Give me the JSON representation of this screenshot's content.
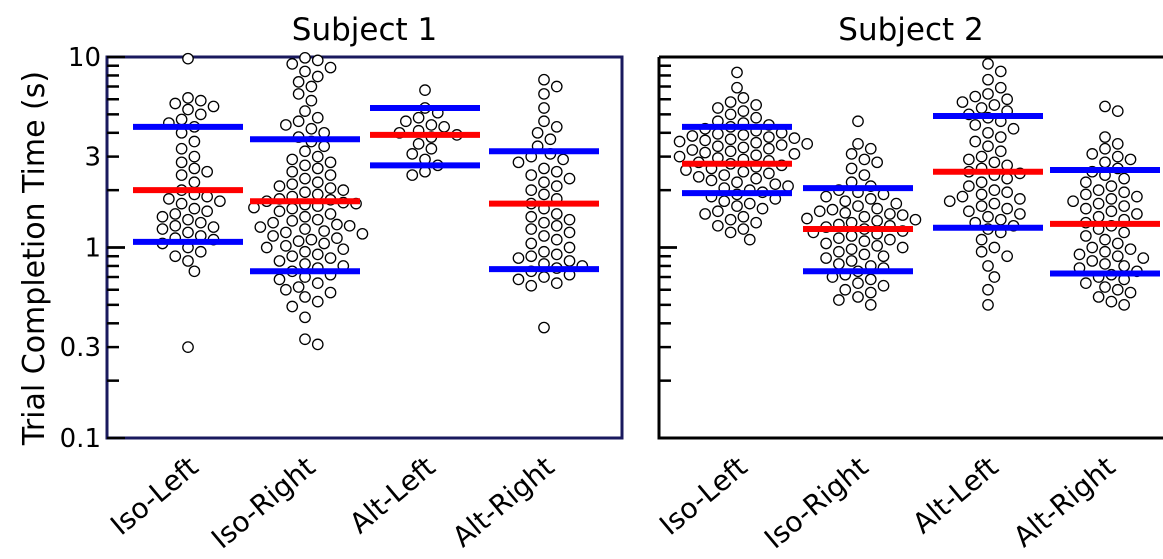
{
  "chart_data": {
    "type": "scatter",
    "ylabel": "Trial Completion Time (s)",
    "yscale": "log",
    "ylim": [
      0.1,
      10
    ],
    "yticks": [
      {
        "value": 10,
        "label": "10"
      },
      {
        "value": 3,
        "label": "3"
      },
      {
        "value": 1,
        "label": "1"
      },
      {
        "value": 0.3,
        "label": "0.3"
      },
      {
        "value": 0.1,
        "label": "0.1"
      }
    ],
    "categories": [
      "Iso-Left",
      "Iso-Right",
      "Alt-Left",
      "Alt-Right"
    ],
    "colors": {
      "median": "#ff0000",
      "quartile": "#0000ff",
      "point_edge": "#000000",
      "point_fill": "#ffffff",
      "frame_subject1": "#1a1a5e"
    },
    "panels": [
      {
        "title": "Subject 1",
        "groups": [
          {
            "category": "Iso-Left",
            "median": 2.0,
            "q1": 1.07,
            "q3": 4.3,
            "points": [
              9.8,
              6.1,
              5.9,
              5.7,
              5.5,
              5.3,
              5.0,
              4.7,
              4.5,
              4.3,
              4.0,
              3.6,
              3.3,
              3.0,
              2.8,
              2.6,
              2.5,
              2.4,
              2.2,
              2.0,
              1.9,
              1.85,
              1.8,
              1.75,
              1.7,
              1.6,
              1.55,
              1.5,
              1.45,
              1.4,
              1.35,
              1.3,
              1.28,
              1.25,
              1.2,
              1.15,
              1.12,
              1.1,
              1.05,
              1.0,
              0.95,
              0.9,
              0.85,
              0.75,
              0.3
            ]
          },
          {
            "category": "Iso-Right",
            "median": 1.75,
            "q1": 0.75,
            "q3": 3.7,
            "points": [
              9.9,
              9.6,
              9.2,
              8.8,
              8.4,
              7.9,
              7.4,
              7.0,
              6.4,
              5.9,
              5.2,
              4.8,
              4.6,
              4.4,
              4.2,
              4.0,
              3.8,
              3.6,
              3.4,
              3.2,
              3.0,
              2.9,
              2.8,
              2.7,
              2.6,
              2.5,
              2.4,
              2.3,
              2.2,
              2.15,
              2.1,
              2.05,
              2.0,
              1.95,
              1.9,
              1.85,
              1.8,
              1.78,
              1.75,
              1.72,
              1.7,
              1.68,
              1.65,
              1.62,
              1.6,
              1.55,
              1.5,
              1.45,
              1.4,
              1.38,
              1.35,
              1.32,
              1.3,
              1.28,
              1.25,
              1.22,
              1.2,
              1.18,
              1.15,
              1.12,
              1.1,
              1.08,
              1.05,
              1.02,
              1.0,
              0.98,
              0.95,
              0.92,
              0.9,
              0.88,
              0.85,
              0.82,
              0.8,
              0.78,
              0.75,
              0.72,
              0.7,
              0.68,
              0.65,
              0.62,
              0.6,
              0.58,
              0.55,
              0.52,
              0.49,
              0.43,
              0.33,
              0.31
            ]
          },
          {
            "category": "Alt-Left",
            "median": 3.9,
            "q1": 2.7,
            "q3": 5.4,
            "points": [
              6.7,
              5.4,
              5.1,
              4.8,
              4.6,
              4.4,
              4.3,
              4.1,
              4.0,
              3.9,
              3.8,
              3.5,
              3.3,
              3.1,
              2.9,
              2.7,
              2.5,
              2.4
            ]
          },
          {
            "category": "Alt-Right",
            "median": 1.7,
            "q1": 0.77,
            "q3": 3.2,
            "points": [
              7.6,
              7.0,
              6.4,
              5.4,
              4.6,
              4.3,
              4.0,
              3.7,
              3.4,
              3.1,
              3.0,
              2.9,
              2.8,
              2.6,
              2.5,
              2.4,
              2.3,
              2.2,
              2.1,
              2.0,
              1.9,
              1.8,
              1.7,
              1.6,
              1.5,
              1.45,
              1.4,
              1.35,
              1.3,
              1.25,
              1.2,
              1.15,
              1.1,
              1.05,
              1.0,
              0.95,
              0.92,
              0.9,
              0.88,
              0.85,
              0.82,
              0.8,
              0.78,
              0.75,
              0.72,
              0.7,
              0.68,
              0.65,
              0.63,
              0.38
            ]
          }
        ]
      },
      {
        "title": "Subject 2",
        "groups": [
          {
            "category": "Iso-Left",
            "median": 2.75,
            "q1": 1.93,
            "q3": 4.3,
            "points": [
              8.3,
              6.9,
              6.1,
              5.8,
              5.6,
              5.4,
              5.2,
              5.0,
              4.8,
              4.6,
              4.5,
              4.4,
              4.3,
              4.2,
              4.1,
              4.0,
              3.95,
              3.9,
              3.85,
              3.8,
              3.75,
              3.7,
              3.65,
              3.6,
              3.55,
              3.5,
              3.45,
              3.4,
              3.35,
              3.3,
              3.25,
              3.2,
              3.15,
              3.1,
              3.05,
              3.0,
              2.95,
              2.9,
              2.85,
              2.8,
              2.75,
              2.7,
              2.65,
              2.6,
              2.55,
              2.5,
              2.45,
              2.4,
              2.35,
              2.3,
              2.25,
              2.2,
              2.15,
              2.1,
              2.05,
              2.0,
              1.95,
              1.9,
              1.85,
              1.8,
              1.75,
              1.7,
              1.65,
              1.6,
              1.55,
              1.5,
              1.45,
              1.4,
              1.35,
              1.3,
              1.25,
              1.2,
              1.1
            ]
          },
          {
            "category": "Iso-Right",
            "median": 1.25,
            "q1": 0.75,
            "q3": 2.05,
            "points": [
              4.6,
              3.5,
              3.3,
              3.1,
              2.9,
              2.8,
              2.6,
              2.4,
              2.2,
              2.1,
              2.0,
              1.95,
              1.9,
              1.85,
              1.8,
              1.75,
              1.7,
              1.65,
              1.6,
              1.58,
              1.55,
              1.52,
              1.5,
              1.48,
              1.45,
              1.42,
              1.4,
              1.38,
              1.35,
              1.32,
              1.3,
              1.28,
              1.25,
              1.22,
              1.2,
              1.18,
              1.15,
              1.12,
              1.1,
              1.08,
              1.05,
              1.02,
              1.0,
              0.98,
              0.95,
              0.92,
              0.9,
              0.88,
              0.85,
              0.82,
              0.8,
              0.78,
              0.75,
              0.72,
              0.7,
              0.68,
              0.65,
              0.63,
              0.6,
              0.58,
              0.55,
              0.53,
              0.5
            ]
          },
          {
            "category": "Alt-Left",
            "median": 2.5,
            "q1": 1.27,
            "q3": 4.9,
            "points": [
              9.2,
              8.4,
              7.6,
              6.9,
              6.4,
              6.2,
              6.0,
              5.8,
              5.6,
              5.4,
              5.2,
              5.0,
              4.8,
              4.6,
              4.4,
              4.2,
              4.0,
              3.8,
              3.6,
              3.4,
              3.2,
              3.0,
              2.9,
              2.8,
              2.7,
              2.6,
              2.5,
              2.45,
              2.4,
              2.3,
              2.2,
              2.1,
              2.0,
              1.95,
              1.9,
              1.85,
              1.8,
              1.75,
              1.7,
              1.65,
              1.6,
              1.55,
              1.5,
              1.45,
              1.4,
              1.35,
              1.3,
              1.25,
              1.2,
              1.1,
              1.0,
              0.95,
              0.9,
              0.8,
              0.7,
              0.6,
              0.5
            ]
          },
          {
            "category": "Alt-Right",
            "median": 1.33,
            "q1": 0.73,
            "q3": 2.55,
            "points": [
              5.5,
              5.2,
              3.8,
              3.5,
              3.3,
              3.1,
              3.0,
              2.9,
              2.8,
              2.6,
              2.5,
              2.4,
              2.3,
              2.2,
              2.1,
              2.0,
              1.95,
              1.9,
              1.85,
              1.8,
              1.75,
              1.7,
              1.65,
              1.6,
              1.55,
              1.5,
              1.45,
              1.4,
              1.35,
              1.3,
              1.25,
              1.2,
              1.15,
              1.1,
              1.05,
              1.0,
              0.98,
              0.95,
              0.92,
              0.9,
              0.88,
              0.85,
              0.82,
              0.8,
              0.78,
              0.75,
              0.72,
              0.7,
              0.68,
              0.65,
              0.62,
              0.6,
              0.58,
              0.55,
              0.52,
              0.5
            ]
          }
        ]
      }
    ]
  }
}
